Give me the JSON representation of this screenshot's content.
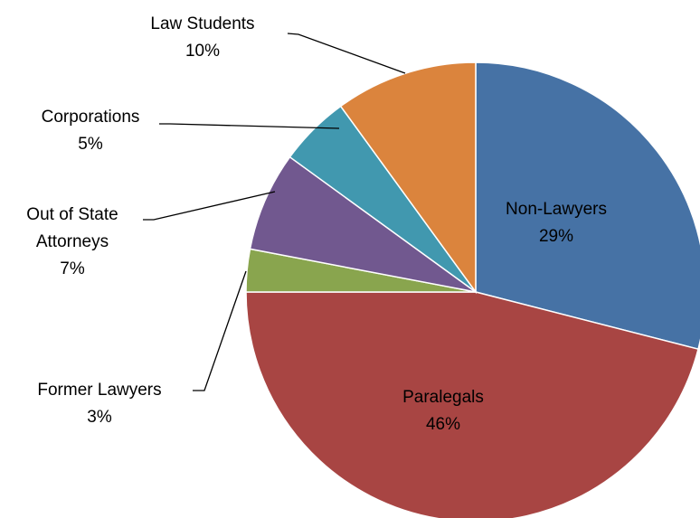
{
  "chart_data": {
    "type": "pie",
    "categories": [
      "Non-Lawyers",
      "Paralegals",
      "Former Lawyers",
      "Out of State Attorneys",
      "Corporations",
      "Law Students"
    ],
    "values": [
      29,
      46,
      3,
      7,
      5,
      10
    ],
    "value_labels": [
      "29%",
      "46%",
      "3%",
      "7%",
      "5%",
      "10%"
    ],
    "colors": [
      "#4672a5",
      "#a84543",
      "#89a54e",
      "#71588f",
      "#4198af",
      "#db843d"
    ]
  }
}
